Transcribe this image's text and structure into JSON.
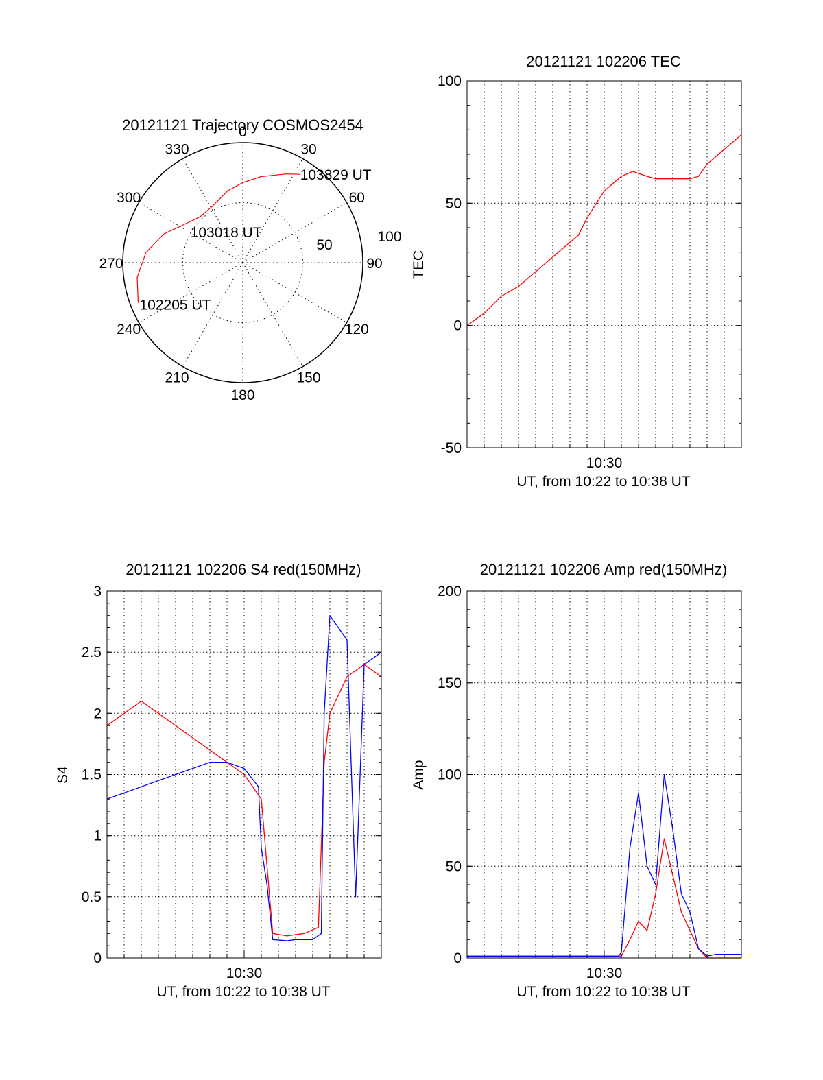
{
  "chart_data": [
    {
      "type": "polar",
      "title": "20121121 Trajectory COSMOS2454",
      "angle_labels": [
        "0",
        "30",
        "60",
        "90",
        "120",
        "150",
        "180",
        "210",
        "240",
        "270",
        "300",
        "330"
      ],
      "radial_labels": [
        "50",
        "100"
      ],
      "grid": true,
      "zero_direction": "top",
      "angle_direction": "clockwise",
      "series": [
        {
          "color": "#ff0000",
          "points": [
            {
              "azimuth": 249,
              "elevation": 6
            },
            {
              "azimuth": 262,
              "elevation": 10
            },
            {
              "azimuth": 276,
              "elevation": 17
            },
            {
              "azimuth": 290,
              "elevation": 27
            },
            {
              "azimuth": 304,
              "elevation": 38
            },
            {
              "azimuth": 317,
              "elevation": 43
            },
            {
              "azimuth": 331,
              "elevation": 42
            },
            {
              "azimuth": 348,
              "elevation": 35
            },
            {
              "azimuth": 0,
              "elevation": 30
            },
            {
              "azimuth": 12,
              "elevation": 24
            },
            {
              "azimuth": 26,
              "elevation": 16
            },
            {
              "azimuth": 33,
              "elevation": 11
            }
          ]
        }
      ],
      "annotations": [
        {
          "text": "103829 UT",
          "azimuth": 33,
          "elevation": 11
        },
        {
          "text": "103018 UT",
          "azimuth": 317,
          "elevation": 43
        },
        {
          "text": "102205 UT",
          "azimuth": 249,
          "elevation": 6
        }
      ]
    },
    {
      "type": "line",
      "title": "20121121 102206 TEC",
      "xlabel": "UT, from 10:22 to 10:38 UT",
      "ylabel": "TEC",
      "xlim": [
        "10:22",
        "10:38"
      ],
      "ylim": [
        -50,
        100
      ],
      "x_tick_labels": [
        "10:30"
      ],
      "y_tick_labels": [
        "-50",
        "0",
        "50",
        "100"
      ],
      "grid": true,
      "series": [
        {
          "color": "#ff0000",
          "points": [
            [
              "10:22",
              0
            ],
            [
              "10:23",
              5
            ],
            [
              "10:24",
              12
            ],
            [
              "10:25",
              16
            ],
            [
              "10:26",
              22
            ],
            [
              "10:27",
              28
            ],
            [
              "10:28",
              34
            ],
            [
              "10:28:30",
              37
            ],
            [
              "10:29",
              44
            ],
            [
              "10:30",
              55
            ],
            [
              "10:31",
              61
            ],
            [
              "10:31:40",
              63
            ],
            [
              "10:32:30",
              61
            ],
            [
              "10:33",
              60
            ],
            [
              "10:34",
              60
            ],
            [
              "10:35",
              60
            ],
            [
              "10:35:30",
              61
            ],
            [
              "10:36",
              66
            ],
            [
              "10:37",
              72
            ],
            [
              "10:38",
              78
            ]
          ]
        }
      ]
    },
    {
      "type": "line",
      "title": "20121121 102206 S4 red(150MHz)",
      "xlabel": "UT, from 10:22 to 10:38 UT",
      "ylabel": "S4",
      "xlim": [
        "10:22",
        "10:38"
      ],
      "ylim": [
        0,
        3
      ],
      "x_tick_labels": [
        "10:30"
      ],
      "y_tick_labels": [
        "0",
        "0.5",
        "1",
        "1.5",
        "2",
        "2.5",
        "3"
      ],
      "grid": true,
      "series": [
        {
          "color": "#ff0000",
          "points": [
            [
              "10:22",
              1.9
            ],
            [
              "10:23",
              2.0
            ],
            [
              "10:24",
              2.1
            ],
            [
              "10:25",
              2.0
            ],
            [
              "10:26",
              1.9
            ],
            [
              "10:27",
              1.8
            ],
            [
              "10:28",
              1.7
            ],
            [
              "10:29",
              1.6
            ],
            [
              "10:30",
              1.5
            ],
            [
              "10:31",
              1.3
            ],
            [
              "10:31:40",
              0.2
            ],
            [
              "10:32:30",
              0.18
            ],
            [
              "10:33:30",
              0.2
            ],
            [
              "10:34:20",
              0.25
            ],
            [
              "10:34:40",
              1.6
            ],
            [
              "10:35",
              2.0
            ],
            [
              "10:36",
              2.3
            ],
            [
              "10:37",
              2.4
            ],
            [
              "10:38",
              2.3
            ]
          ]
        },
        {
          "color": "#0000ff",
          "points": [
            [
              "10:22",
              1.3
            ],
            [
              "10:23",
              1.35
            ],
            [
              "10:24",
              1.4
            ],
            [
              "10:25",
              1.45
            ],
            [
              "10:26",
              1.5
            ],
            [
              "10:27",
              1.55
            ],
            [
              "10:28",
              1.6
            ],
            [
              "10:29",
              1.6
            ],
            [
              "10:30",
              1.55
            ],
            [
              "10:30:50",
              1.4
            ],
            [
              "10:31",
              0.9
            ],
            [
              "10:31:20",
              0.6
            ],
            [
              "10:31:40",
              0.15
            ],
            [
              "10:32:30",
              0.14
            ],
            [
              "10:33",
              0.15
            ],
            [
              "10:34",
              0.15
            ],
            [
              "10:34:30",
              0.2
            ],
            [
              "10:34:40",
              2.0
            ],
            [
              "10:35",
              2.8
            ],
            [
              "10:36",
              2.6
            ],
            [
              "10:36:30",
              0.5
            ],
            [
              "10:37",
              2.4
            ],
            [
              "10:38",
              2.5
            ]
          ]
        }
      ]
    },
    {
      "type": "line",
      "title": "20121121 102206 Amp red(150MHz)",
      "xlabel": "UT, from 10:22 to 10:38 UT",
      "ylabel": "Amp",
      "xlim": [
        "10:22",
        "10:38"
      ],
      "ylim": [
        0,
        200
      ],
      "x_tick_labels": [
        "10:30"
      ],
      "y_tick_labels": [
        "0",
        "50",
        "100",
        "150",
        "200"
      ],
      "grid": true,
      "series": [
        {
          "color": "#ff0000",
          "points": [
            [
              "10:22",
              1
            ],
            [
              "10:31",
              1
            ],
            [
              "10:31:30",
              10
            ],
            [
              "10:32",
              20
            ],
            [
              "10:32:30",
              15
            ],
            [
              "10:33",
              35
            ],
            [
              "10:33:30",
              65
            ],
            [
              "10:34",
              45
            ],
            [
              "10:34:30",
              25
            ],
            [
              "10:35",
              15
            ],
            [
              "10:35:30",
              5
            ],
            [
              "10:36",
              0
            ],
            [
              "10:38",
              0
            ]
          ]
        },
        {
          "color": "#0000ff",
          "points": [
            [
              "10:22",
              1
            ],
            [
              "10:30:50",
              1
            ],
            [
              "10:31",
              3
            ],
            [
              "10:31:30",
              60
            ],
            [
              "10:32",
              90
            ],
            [
              "10:32:30",
              50
            ],
            [
              "10:33",
              40
            ],
            [
              "10:33:30",
              100
            ],
            [
              "10:34",
              70
            ],
            [
              "10:34:30",
              35
            ],
            [
              "10:35",
              25
            ],
            [
              "10:35:30",
              5
            ],
            [
              "10:36",
              1
            ],
            [
              "10:36:30",
              2
            ],
            [
              "10:38",
              2
            ]
          ]
        }
      ]
    }
  ]
}
